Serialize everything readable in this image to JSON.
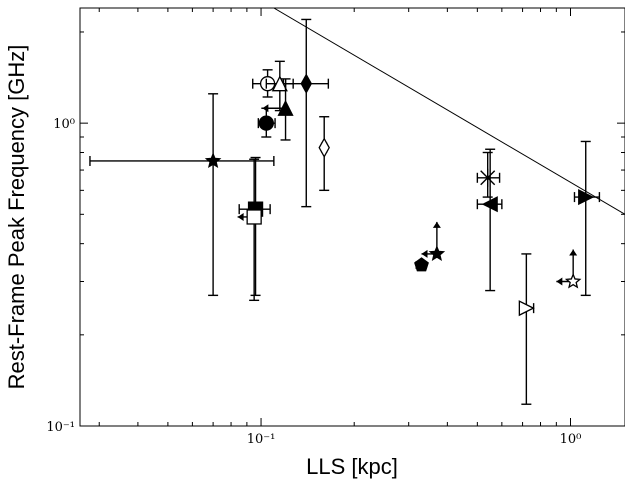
{
  "chart_data": {
    "type": "scatter",
    "title": "",
    "xlabel": "LLS [kpc]",
    "ylabel": "Rest-Frame Peak Frequency [GHz]",
    "xscale": "log",
    "yscale": "log",
    "xlim": [
      0.026,
      1.5
    ],
    "ylim": [
      0.1,
      2.4
    ],
    "x_ticks": [
      {
        "value": 0.1,
        "label": "10⁻¹"
      },
      {
        "value": 1,
        "label": "10⁰"
      }
    ],
    "y_ticks": [
      {
        "value": 0.1,
        "label": "10⁻¹"
      },
      {
        "value": 1,
        "label": "10⁰"
      }
    ],
    "grid": false,
    "reference_line": {
      "x": [
        0.11,
        1.5
      ],
      "y": [
        2.4,
        0.5
      ]
    },
    "points": [
      {
        "marker": "star",
        "x": 0.07,
        "y": 0.75,
        "xlo": 0.028,
        "xhi": 0.11,
        "ylo": 0.27,
        "yhi": 1.25,
        "upper_x": false,
        "upper_y": false
      },
      {
        "marker": "circle-open",
        "x": 0.105,
        "y": 1.35,
        "xlo": 0.094,
        "xhi": 0.118,
        "ylo": 1.22,
        "yhi": 1.5,
        "upper_x": false,
        "upper_y": false
      },
      {
        "marker": "triangle-up-open",
        "x": 0.115,
        "y": 1.35,
        "xlo": 0.104,
        "xhi": 0.127,
        "ylo": 1.1,
        "yhi": 1.6,
        "upper_x": false,
        "upper_y": false
      },
      {
        "marker": "diamond-filled",
        "x": 0.14,
        "y": 1.35,
        "xlo": 0.12,
        "xhi": 0.165,
        "ylo": 0.53,
        "yhi": 2.2,
        "upper_x": false,
        "upper_y": false
      },
      {
        "marker": "triangle-up-filled",
        "x": 0.12,
        "y": 1.12,
        "xlo": 0.101,
        "xhi": 0.12,
        "ylo": 0.88,
        "yhi": 1.4,
        "upper_x": true,
        "upper_y": false
      },
      {
        "marker": "circle-filled",
        "x": 0.104,
        "y": 1.0,
        "xlo": 0.098,
        "xhi": 0.111,
        "ylo": 0.9,
        "yhi": 1.12,
        "upper_x": false,
        "upper_y": false
      },
      {
        "marker": "diamond-open",
        "x": 0.16,
        "y": 0.83,
        "xlo": 0.157,
        "xhi": 0.163,
        "ylo": 0.6,
        "yhi": 1.05,
        "upper_x": false,
        "upper_y": false
      },
      {
        "marker": "square-filled",
        "x": 0.096,
        "y": 0.52,
        "xlo": 0.085,
        "xhi": 0.107,
        "ylo": 0.27,
        "yhi": 0.77,
        "upper_x": false,
        "upper_y": false
      },
      {
        "marker": "square-open",
        "x": 0.095,
        "y": 0.49,
        "xlo": 0.084,
        "xhi": 0.095,
        "ylo": 0.26,
        "yhi": 0.76,
        "upper_x": true,
        "upper_y": false
      },
      {
        "marker": "star",
        "x": 0.37,
        "y": 0.37,
        "xlo": 0.33,
        "xhi": 0.37,
        "ylo": 0.37,
        "yhi": 0.37,
        "upper_x": true,
        "upper_y": true
      },
      {
        "marker": "pentagon-filled",
        "x": 0.33,
        "y": 0.34,
        "xlo": 0.33,
        "xhi": 0.33,
        "ylo": 0.34,
        "yhi": 0.34,
        "upper_x": true,
        "upper_y": false
      },
      {
        "marker": "x-cross",
        "x": 0.54,
        "y": 0.66,
        "xlo": 0.5,
        "xhi": 0.59,
        "ylo": 0.57,
        "yhi": 0.8,
        "upper_x": false,
        "upper_y": false
      },
      {
        "marker": "triangle-left-filled",
        "x": 0.55,
        "y": 0.54,
        "xlo": 0.5,
        "xhi": 0.6,
        "ylo": 0.28,
        "yhi": 0.82,
        "upper_x": false,
        "upper_y": false
      },
      {
        "marker": "triangle-right-open",
        "x": 0.72,
        "y": 0.245,
        "xlo": 0.69,
        "xhi": 0.76,
        "ylo": 0.118,
        "yhi": 0.37,
        "upper_x": false,
        "upper_y": false
      },
      {
        "marker": "star-open",
        "x": 1.02,
        "y": 0.3,
        "xlo": 0.9,
        "xhi": 1.02,
        "ylo": 0.3,
        "yhi": 0.3,
        "upper_x": true,
        "upper_y": true
      },
      {
        "marker": "triangle-right-filled",
        "x": 1.12,
        "y": 0.57,
        "xlo": 1.03,
        "xhi": 1.24,
        "ylo": 0.27,
        "yhi": 0.87,
        "upper_x": false,
        "upper_y": false
      }
    ]
  }
}
